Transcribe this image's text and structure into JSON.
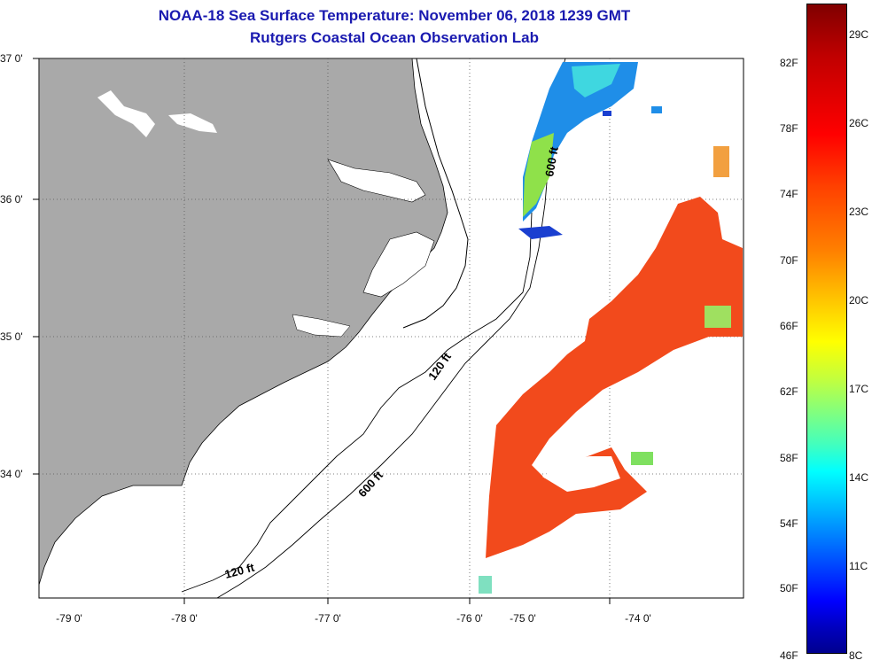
{
  "header": {
    "title": "NOAA-18 Sea Surface Temperature:  November 06, 2018 1239 GMT",
    "subtitle": "Rutgers Coastal Ocean Observation Lab"
  },
  "lat_ticks": [
    "37 0'",
    "36 0'",
    "35 0'",
    "34 0'"
  ],
  "lon_ticks": [
    "-79 0'",
    "-78 0'",
    "-77 0'",
    "-76 0'",
    "-75 0'",
    "-74 0'"
  ],
  "colorbar": {
    "fahrenheit": [
      "82F",
      "78F",
      "74F",
      "70F",
      "66F",
      "62F",
      "58F",
      "54F",
      "50F",
      "46F"
    ],
    "celsius": [
      "29C",
      "26C",
      "23C",
      "20C",
      "17C",
      "14C",
      "11C",
      "8C"
    ]
  },
  "contours": {
    "c120_north": "120 ft",
    "c600_north": "600 ft",
    "c120_south": "120 ft",
    "c600_south": "600 ft"
  },
  "colors": {
    "land": "#a9a9a9",
    "title": "#1a1ab0",
    "warm": "#f24a1c",
    "cool": "#1f8ee8"
  }
}
